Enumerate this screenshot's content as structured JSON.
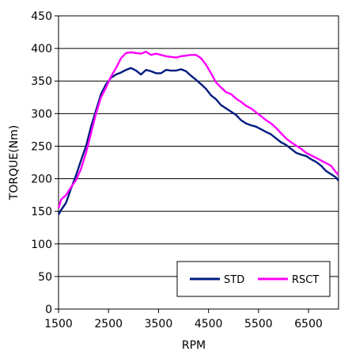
{
  "chart_data": {
    "type": "line",
    "xlabel": "RPM",
    "ylabel": "TORQUE(Nm)",
    "xlim": [
      1500,
      7100
    ],
    "ylim": [
      0,
      450
    ],
    "x_ticks": [
      1500,
      2500,
      3500,
      4500,
      5500,
      6500
    ],
    "y_ticks": [
      0,
      50,
      100,
      150,
      200,
      250,
      300,
      350,
      400,
      450
    ],
    "grid": "horizontal",
    "legend_position": "bottom-right",
    "series": [
      {
        "name": "STD",
        "color": "#001a80",
        "points": [
          [
            1500,
            145
          ],
          [
            1550,
            152
          ],
          [
            1650,
            163
          ],
          [
            1750,
            185
          ],
          [
            1850,
            205
          ],
          [
            1950,
            228
          ],
          [
            2050,
            250
          ],
          [
            2150,
            280
          ],
          [
            2250,
            305
          ],
          [
            2350,
            330
          ],
          [
            2450,
            345
          ],
          [
            2550,
            355
          ],
          [
            2650,
            360
          ],
          [
            2750,
            363
          ],
          [
            2850,
            367
          ],
          [
            2950,
            370
          ],
          [
            3050,
            366
          ],
          [
            3150,
            360
          ],
          [
            3250,
            367
          ],
          [
            3350,
            365
          ],
          [
            3450,
            362
          ],
          [
            3550,
            362
          ],
          [
            3650,
            367
          ],
          [
            3750,
            366
          ],
          [
            3850,
            366
          ],
          [
            3950,
            368
          ],
          [
            4050,
            365
          ],
          [
            4150,
            358
          ],
          [
            4250,
            352
          ],
          [
            4350,
            345
          ],
          [
            4450,
            338
          ],
          [
            4550,
            328
          ],
          [
            4650,
            322
          ],
          [
            4750,
            313
          ],
          [
            4850,
            308
          ],
          [
            4950,
            303
          ],
          [
            5050,
            298
          ],
          [
            5150,
            290
          ],
          [
            5250,
            285
          ],
          [
            5350,
            282
          ],
          [
            5450,
            280
          ],
          [
            5550,
            276
          ],
          [
            5650,
            272
          ],
          [
            5750,
            268
          ],
          [
            5850,
            262
          ],
          [
            5950,
            256
          ],
          [
            6050,
            252
          ],
          [
            6150,
            246
          ],
          [
            6250,
            240
          ],
          [
            6350,
            237
          ],
          [
            6450,
            235
          ],
          [
            6550,
            230
          ],
          [
            6650,
            226
          ],
          [
            6750,
            220
          ],
          [
            6850,
            212
          ],
          [
            6950,
            207
          ],
          [
            7050,
            202
          ],
          [
            7100,
            197
          ]
        ]
      },
      {
        "name": "RSCT",
        "color": "#ff00ff",
        "points": [
          [
            1500,
            155
          ],
          [
            1550,
            168
          ],
          [
            1650,
            175
          ],
          [
            1750,
            187
          ],
          [
            1850,
            198
          ],
          [
            1950,
            215
          ],
          [
            2050,
            240
          ],
          [
            2150,
            270
          ],
          [
            2250,
            300
          ],
          [
            2350,
            325
          ],
          [
            2450,
            340
          ],
          [
            2550,
            357
          ],
          [
            2650,
            370
          ],
          [
            2750,
            385
          ],
          [
            2850,
            393
          ],
          [
            2950,
            394
          ],
          [
            3050,
            393
          ],
          [
            3150,
            392
          ],
          [
            3250,
            395
          ],
          [
            3350,
            390
          ],
          [
            3450,
            392
          ],
          [
            3550,
            390
          ],
          [
            3650,
            388
          ],
          [
            3750,
            387
          ],
          [
            3850,
            386
          ],
          [
            3950,
            388
          ],
          [
            4050,
            389
          ],
          [
            4150,
            390
          ],
          [
            4250,
            390
          ],
          [
            4350,
            385
          ],
          [
            4450,
            375
          ],
          [
            4550,
            362
          ],
          [
            4650,
            348
          ],
          [
            4750,
            340
          ],
          [
            4850,
            333
          ],
          [
            4950,
            330
          ],
          [
            5050,
            323
          ],
          [
            5150,
            318
          ],
          [
            5250,
            312
          ],
          [
            5350,
            308
          ],
          [
            5450,
            302
          ],
          [
            5550,
            296
          ],
          [
            5650,
            290
          ],
          [
            5750,
            285
          ],
          [
            5850,
            278
          ],
          [
            5950,
            270
          ],
          [
            6050,
            262
          ],
          [
            6150,
            256
          ],
          [
            6250,
            251
          ],
          [
            6350,
            246
          ],
          [
            6450,
            240
          ],
          [
            6550,
            236
          ],
          [
            6650,
            232
          ],
          [
            6750,
            228
          ],
          [
            6850,
            224
          ],
          [
            6950,
            220
          ],
          [
            7050,
            210
          ],
          [
            7100,
            206
          ]
        ]
      }
    ]
  }
}
